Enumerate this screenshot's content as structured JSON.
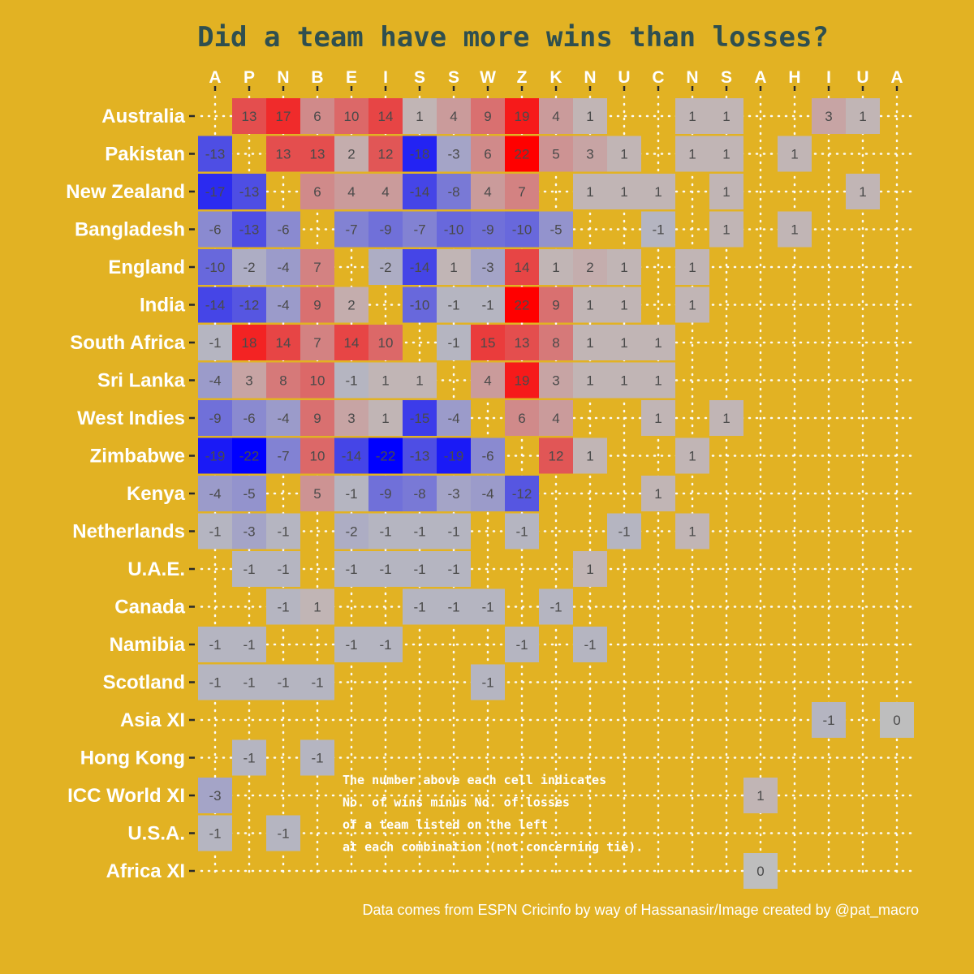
{
  "chart_data": {
    "type": "heatmap",
    "title": "Did a team have more wins than losses?",
    "x_labels": [
      "A",
      "P",
      "N",
      "B",
      "E",
      "I",
      "S",
      "S",
      "W",
      "Z",
      "K",
      "N",
      "U",
      "C",
      "N",
      "S",
      "A",
      "H",
      "I",
      "U",
      "A"
    ],
    "y_labels": [
      "Australia",
      "Pakistan",
      "New Zealand",
      "Bangladesh",
      "England",
      "India",
      "South Africa",
      "Sri Lanka",
      "West Indies",
      "Zimbabwe",
      "Kenya",
      "Netherlands",
      "U.A.E.",
      "Canada",
      "Namibia",
      "Scotland",
      "Asia XI",
      "Hong Kong",
      "ICC World XI",
      "U.S.A.",
      "Africa XI"
    ],
    "values": [
      [
        null,
        13,
        17,
        6,
        10,
        14,
        1,
        4,
        9,
        19,
        4,
        1,
        null,
        null,
        1,
        1,
        null,
        null,
        3,
        1,
        null
      ],
      [
        -13,
        null,
        13,
        13,
        2,
        12,
        -18,
        -3,
        6,
        22,
        5,
        3,
        1,
        null,
        1,
        1,
        null,
        1,
        null,
        null,
        null
      ],
      [
        -17,
        -13,
        null,
        6,
        4,
        4,
        -14,
        -8,
        4,
        7,
        null,
        1,
        1,
        1,
        null,
        1,
        null,
        null,
        null,
        1,
        null
      ],
      [
        -6,
        -13,
        -6,
        null,
        -7,
        -9,
        -7,
        -10,
        -9,
        -10,
        -5,
        null,
        null,
        -1,
        null,
        1,
        null,
        1,
        null,
        null,
        null
      ],
      [
        -10,
        -2,
        -4,
        7,
        null,
        -2,
        -14,
        1,
        -3,
        14,
        1,
        2,
        1,
        null,
        1,
        null,
        null,
        null,
        null,
        null,
        null
      ],
      [
        -14,
        -12,
        -4,
        9,
        2,
        null,
        -10,
        -1,
        -1,
        22,
        9,
        1,
        1,
        null,
        1,
        null,
        null,
        null,
        null,
        null,
        null
      ],
      [
        -1,
        18,
        14,
        7,
        14,
        10,
        null,
        -1,
        15,
        13,
        8,
        1,
        1,
        1,
        null,
        null,
        null,
        null,
        null,
        null,
        null
      ],
      [
        -4,
        3,
        8,
        10,
        -1,
        1,
        1,
        null,
        4,
        19,
        3,
        1,
        1,
        1,
        null,
        null,
        null,
        null,
        null,
        null,
        null
      ],
      [
        -9,
        -6,
        -4,
        9,
        3,
        1,
        -15,
        -4,
        null,
        6,
        4,
        null,
        null,
        1,
        null,
        1,
        null,
        null,
        null,
        null,
        null
      ],
      [
        -19,
        -22,
        -7,
        10,
        -14,
        -22,
        -13,
        -19,
        -6,
        null,
        12,
        1,
        null,
        null,
        1,
        null,
        null,
        null,
        null,
        null,
        null
      ],
      [
        -4,
        -5,
        null,
        5,
        -1,
        -9,
        -8,
        -3,
        -4,
        -12,
        null,
        null,
        null,
        1,
        null,
        null,
        null,
        null,
        null,
        null,
        null
      ],
      [
        -1,
        -3,
        -1,
        null,
        -2,
        -1,
        -1,
        -1,
        null,
        -1,
        null,
        null,
        -1,
        null,
        1,
        null,
        null,
        null,
        null,
        null,
        null
      ],
      [
        null,
        -1,
        -1,
        null,
        -1,
        -1,
        -1,
        -1,
        null,
        null,
        null,
        1,
        null,
        null,
        null,
        null,
        null,
        null,
        null,
        null,
        null
      ],
      [
        null,
        null,
        -1,
        1,
        null,
        null,
        -1,
        -1,
        -1,
        null,
        -1,
        null,
        null,
        null,
        null,
        null,
        null,
        null,
        null,
        null,
        null
      ],
      [
        -1,
        -1,
        null,
        null,
        -1,
        -1,
        null,
        null,
        null,
        -1,
        null,
        -1,
        null,
        null,
        null,
        null,
        null,
        null,
        null,
        null,
        null
      ],
      [
        -1,
        -1,
        -1,
        -1,
        null,
        null,
        null,
        null,
        -1,
        null,
        null,
        null,
        null,
        null,
        null,
        null,
        null,
        null,
        null,
        null,
        null
      ],
      [
        null,
        null,
        null,
        null,
        null,
        null,
        null,
        null,
        null,
        null,
        null,
        null,
        null,
        null,
        null,
        null,
        null,
        null,
        -1,
        null,
        0
      ],
      [
        null,
        -1,
        null,
        -1,
        null,
        null,
        null,
        null,
        null,
        null,
        null,
        null,
        null,
        null,
        null,
        null,
        null,
        null,
        null,
        null,
        null
      ],
      [
        -3,
        null,
        null,
        null,
        null,
        null,
        null,
        null,
        null,
        null,
        null,
        null,
        null,
        null,
        null,
        null,
        1,
        null,
        null,
        null,
        null
      ],
      [
        -1,
        null,
        -1,
        null,
        null,
        null,
        null,
        null,
        null,
        null,
        null,
        null,
        null,
        null,
        null,
        null,
        null,
        null,
        null,
        null,
        null
      ],
      [
        null,
        null,
        null,
        null,
        null,
        null,
        null,
        null,
        null,
        null,
        null,
        null,
        null,
        null,
        null,
        null,
        0,
        null,
        null,
        null,
        null
      ]
    ],
    "color_scale": {
      "min": -22,
      "mid": 0,
      "max": 22,
      "low_color": "#0000ff",
      "mid_color": "#bebebe",
      "high_color": "#ff0000"
    },
    "annotation": [
      "The number above each cell indicates",
      "No. of wins minus No. of losses",
      "of a team listed on the left",
      "at each combination (not concerning tie)."
    ],
    "caption": "Data comes from ESPN Cricinfo by way of Hassanasir/Image created by @pat_macro",
    "colors": {
      "background": "#e2b223",
      "title": "#2f4f4f",
      "labels": "#ffffff",
      "value_text": "#4a4a4a"
    }
  }
}
